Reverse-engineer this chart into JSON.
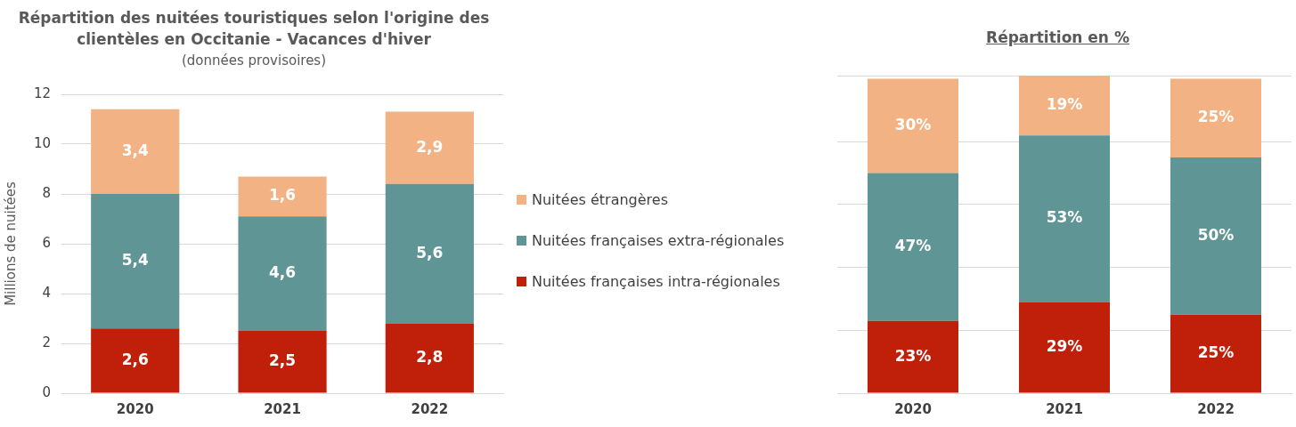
{
  "chart_data": [
    {
      "type": "bar",
      "title": "Répartition des nuitées touristiques selon l'origine des clientèles en Occitanie - Vacances d'hiver",
      "subtitle": "(données provisoires)",
      "ylabel": "Millions de nuitées",
      "categories": [
        "2020",
        "2021",
        "2022"
      ],
      "stacked": true,
      "ylim": [
        0,
        12
      ],
      "yticks": [
        0,
        2,
        4,
        6,
        8,
        10,
        12
      ],
      "grid": "y",
      "legend": "right",
      "series": [
        {
          "name": "Nuitées françaises intra-régionales",
          "color": "#c0200a",
          "values": [
            2.6,
            2.5,
            2.8
          ],
          "value_labels": [
            "2,6",
            "2,5",
            "2,8"
          ]
        },
        {
          "name": "Nuitées françaises extra-régionales",
          "color": "#5f9595",
          "values": [
            5.4,
            4.6,
            5.6
          ],
          "value_labels": [
            "5,4",
            "4,6",
            "5,6"
          ]
        },
        {
          "name": "Nuitées étrangères",
          "color": "#f3b283",
          "values": [
            3.4,
            1.6,
            2.9
          ],
          "value_labels": [
            "3,4",
            "1,6",
            "2,9"
          ]
        }
      ]
    },
    {
      "type": "bar",
      "title": "Répartition en %",
      "categories": [
        "2020",
        "2021",
        "2022"
      ],
      "stacked": true,
      "ylim": [
        0,
        101
      ],
      "grid": "y",
      "tick_labels": "x",
      "series": [
        {
          "color": "#c0200a",
          "values": [
            23,
            29,
            25
          ],
          "value_labels": [
            "23%",
            "29%",
            "25%"
          ]
        },
        {
          "color": "#5f9595",
          "values": [
            47,
            53,
            50
          ],
          "value_labels": [
            "47%",
            "53%",
            "50%"
          ]
        },
        {
          "color": "#f3b283",
          "values": [
            30,
            19,
            25
          ],
          "value_labels": [
            "30%",
            "19%",
            "25%"
          ]
        }
      ]
    }
  ]
}
